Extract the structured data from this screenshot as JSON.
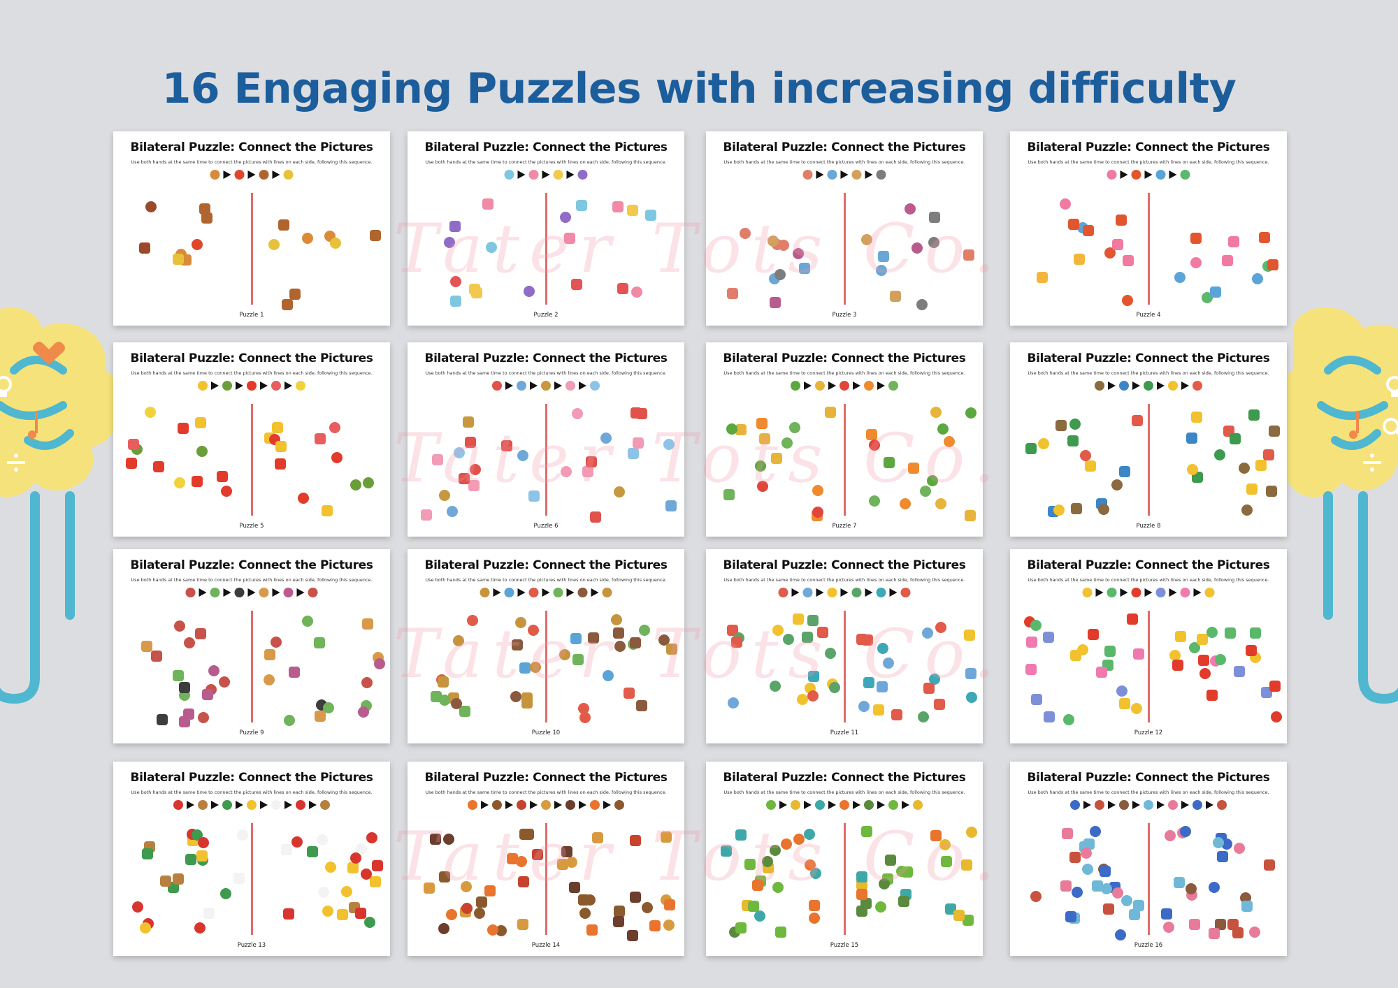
{
  "headline": "16 Engaging Puzzles with increasing difficulty",
  "card_title": "Bilateral Puzzle: Connect the Pictures",
  "card_instruction": "Use both hands at the same time to connect the pictures with lines on each side, following this sequence.",
  "watermark": "Tater Tots Co.",
  "colors": {
    "background": "#dcdde0",
    "headline": "#1c5d9c",
    "divider": "#e06b6b",
    "decoration_yellow": "#f6e27a",
    "decoration_blue": "#4fb7cf"
  },
  "icons": [
    "cloud-brain-decoration-icon",
    "lightbulb-icon",
    "music-note-icon",
    "heart-icon",
    "search-icon",
    "divide-icon"
  ],
  "puzzles": [
    {
      "label": "Puzzle 1",
      "palette": [
        "#d98b3a",
        "#e0462b",
        "#b0652f",
        "#e8c13a",
        "#9a4a2b"
      ]
    },
    {
      "label": "Puzzle 2",
      "palette": [
        "#7fc7e0",
        "#f08aa5",
        "#f2c94c",
        "#8f6cc7",
        "#e45454"
      ]
    },
    {
      "label": "Puzzle 3",
      "palette": [
        "#e07e6a",
        "#6aa7d6",
        "#d2a05c",
        "#7d7d7d",
        "#b85c8e"
      ]
    },
    {
      "label": "Puzzle 4",
      "palette": [
        "#f07aa0",
        "#e2562f",
        "#5aa4d8",
        "#5cb86a",
        "#f2b63c"
      ]
    },
    {
      "label": "Puzzle 5",
      "palette": [
        "#f2c12e",
        "#6b9e3a",
        "#e23b2b",
        "#e85d5d",
        "#f2d23c"
      ]
    },
    {
      "label": "Puzzle 6",
      "palette": [
        "#e0524a",
        "#6fa8d8",
        "#c7983e",
        "#f29bb5",
        "#8ec3e8"
      ]
    },
    {
      "label": "Puzzle 7",
      "palette": [
        "#5aa83e",
        "#e8b33a",
        "#e2463b",
        "#f08a2e",
        "#6fb35a"
      ]
    },
    {
      "label": "Puzzle 8",
      "palette": [
        "#8a6a3e",
        "#3c86c7",
        "#3e9a4e",
        "#f2c12e",
        "#e25a4a"
      ]
    },
    {
      "label": "Puzzle 9",
      "palette": [
        "#c7524a",
        "#6fb35a",
        "#3d3d3d",
        "#d89a4a",
        "#b85c8e"
      ]
    },
    {
      "label": "Puzzle 10",
      "palette": [
        "#c7943e",
        "#5aa4d8",
        "#e25a4a",
        "#6fb35a",
        "#8a5a3e"
      ]
    },
    {
      "label": "Puzzle 11",
      "palette": [
        "#e25a4a",
        "#6fa8d8",
        "#f2c12e",
        "#5aa46a",
        "#3ea8b8"
      ]
    },
    {
      "label": "Puzzle 12",
      "palette": [
        "#f2c12e",
        "#5ab86a",
        "#e23b2b",
        "#7d8fd8",
        "#f07ab0"
      ]
    },
    {
      "label": "Puzzle 13",
      "palette": [
        "#d8352e",
        "#b8803e",
        "#3e9a4e",
        "#f2c12e",
        "#f3f3f3"
      ]
    },
    {
      "label": "Puzzle 14",
      "palette": [
        "#e8742e",
        "#8a5a2e",
        "#c7432e",
        "#d89a3e",
        "#6b3e2e"
      ]
    },
    {
      "label": "Puzzle 15",
      "palette": [
        "#6fb83e",
        "#e8b82e",
        "#3ea8a8",
        "#e8742e",
        "#5a8a3e"
      ]
    },
    {
      "label": "Puzzle 16",
      "palette": [
        "#3c6ac7",
        "#c7523e",
        "#8a5a3e",
        "#6fb8d8",
        "#e87a9a"
      ]
    }
  ]
}
